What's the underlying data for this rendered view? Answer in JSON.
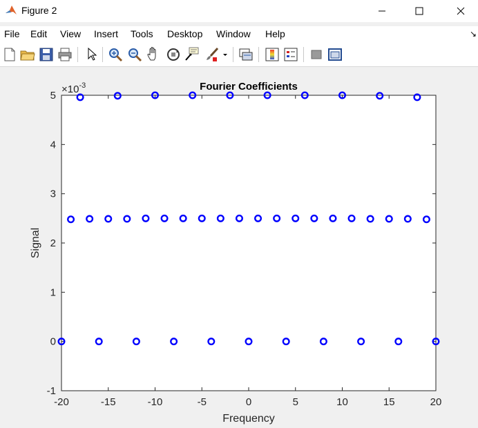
{
  "window": {
    "title": "Figure 2"
  },
  "menu": [
    "File",
    "Edit",
    "View",
    "Insert",
    "Tools",
    "Desktop",
    "Window",
    "Help"
  ],
  "toolbar": [
    "new-figure-icon",
    "open-file-icon",
    "save-icon",
    "print-icon",
    "pointer-icon",
    "zoom-in-icon",
    "zoom-out-icon",
    "pan-hand-icon",
    "rotate-3d-icon",
    "data-cursor-icon",
    "brush-icon",
    "link-plot-icon",
    "colorbar-icon",
    "legend-icon",
    "hide-plot-tools-icon",
    "show-plot-tools-icon"
  ],
  "colors": {
    "marker": "#0000ff"
  },
  "chart_data": {
    "type": "scatter",
    "title": "Fourier Coefficients",
    "xlabel": "Frequency",
    "ylabel": "Signal",
    "xlim": [
      -20,
      20
    ],
    "ylim": [
      -0.001,
      0.005
    ],
    "y_exponent": "×10^-3",
    "x_ticks": [
      -20,
      -15,
      -10,
      -5,
      0,
      5,
      10,
      15,
      20
    ],
    "x_tick_labels": [
      "-20",
      "-15",
      "-10",
      "-5",
      "0",
      "5",
      "10",
      "15",
      "20"
    ],
    "y_ticks": [
      -0.001,
      0,
      0.001,
      0.002,
      0.003,
      0.004,
      0.005
    ],
    "y_tick_labels": [
      "-1",
      "0",
      "1",
      "2",
      "3",
      "4",
      "5"
    ],
    "grid": false,
    "marker": "o",
    "points": {
      "x": [
        -20,
        -16,
        -12,
        -8,
        -4,
        0,
        4,
        8,
        12,
        16,
        20,
        -19,
        -17,
        -15,
        -13,
        -11,
        -9,
        -7,
        -5,
        -3,
        -1,
        1,
        3,
        5,
        7,
        9,
        11,
        13,
        15,
        17,
        19,
        -18,
        -14,
        -10,
        -6,
        -2,
        2,
        6,
        10,
        14,
        18
      ],
      "y": [
        0,
        0,
        0,
        0,
        0,
        0,
        0,
        0,
        0,
        0,
        0,
        0.00248,
        0.00249,
        0.00249,
        0.00249,
        0.0025,
        0.0025,
        0.0025,
        0.0025,
        0.0025,
        0.0025,
        0.0025,
        0.0025,
        0.0025,
        0.0025,
        0.0025,
        0.0025,
        0.00249,
        0.00249,
        0.00249,
        0.00248,
        0.00496,
        0.00499,
        0.005,
        0.005,
        0.005,
        0.005,
        0.005,
        0.005,
        0.00499,
        0.00496
      ]
    }
  }
}
